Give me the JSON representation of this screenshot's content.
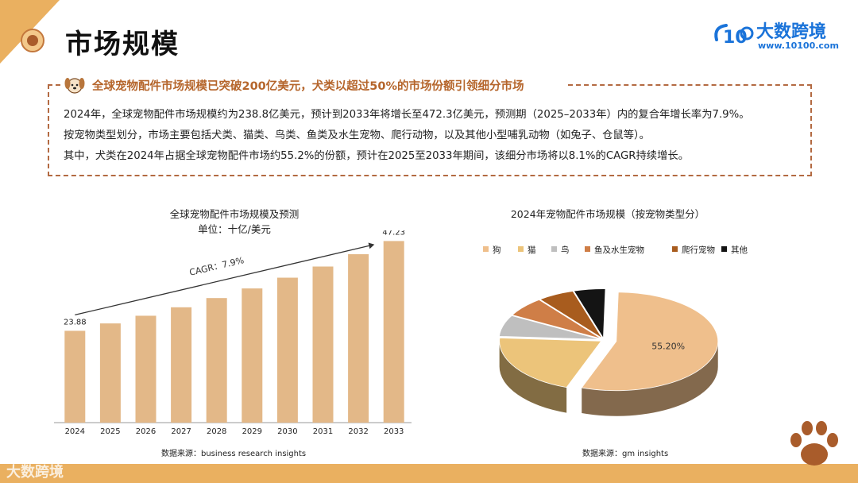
{
  "header": {
    "title": "市场规模",
    "brand_name": "大数跨境",
    "brand_url": "www.10100.com",
    "brand_logo_text": "10"
  },
  "summary": {
    "headline": "全球宠物配件市场规模已突破200亿美元，犬类以超过50%的市场份额引领细分市场",
    "lines": [
      "2024年，全球宠物配件市场规模约为238.8亿美元，预计到2033年将增长至472.3亿美元，预测期（2025–2033年）内的复合年增长率为7.9%。",
      "按宠物类型划分，市场主要包括犬类、猫类、鸟类、鱼类及水生宠物、爬行动物，以及其他小型哺乳动物（如兔子、仓鼠等）。",
      "其中，犬类在2024年占据全球宠物配件市场约55.2%的份额，预计在2025至2033年期间，该细分市场将以8.1%的CAGR持续增长。"
    ]
  },
  "chart_data": [
    {
      "type": "bar",
      "title": "全球宠物配件市场规模及预测",
      "subtitle": "单位：十亿/美元",
      "categories": [
        "2024",
        "2025",
        "2026",
        "2027",
        "2028",
        "2029",
        "2030",
        "2031",
        "2032",
        "2033"
      ],
      "values": [
        23.88,
        25.8,
        27.8,
        30.0,
        32.4,
        34.9,
        37.7,
        40.6,
        43.8,
        47.23
      ],
      "data_labels": {
        "first": "23.88",
        "last": "47.23"
      },
      "annotation": "CAGR：7.9%",
      "ylim": [
        0,
        50
      ],
      "color": "#e3b888",
      "source": "数据来源：business research insights"
    },
    {
      "type": "pie",
      "title": "2024年宠物配件市场规模（按宠物类型分）",
      "labels": [
        "狗",
        "猫",
        "鸟",
        "鱼及水生宠物",
        "爬行宠物",
        "其他"
      ],
      "values": [
        55.2,
        20.5,
        7.0,
        6.5,
        5.8,
        5.0
      ],
      "colors": [
        "#efbf8c",
        "#ecc47a",
        "#bfbfbf",
        "#cf7e47",
        "#a85c1e",
        "#141414"
      ],
      "data_label": "55.20%",
      "legend": "top",
      "source": "数据来源：gm insights"
    }
  ]
}
